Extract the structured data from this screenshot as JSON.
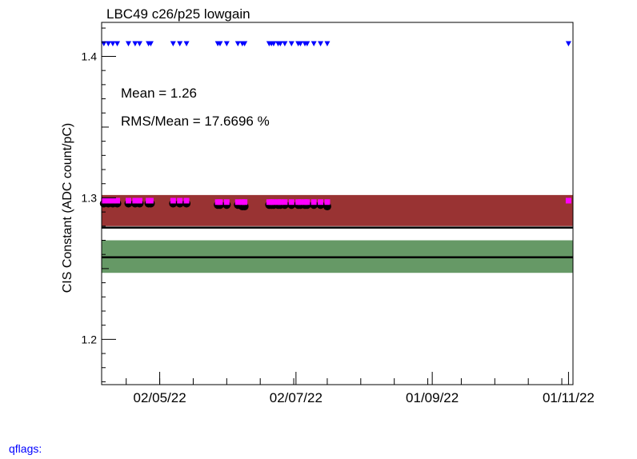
{
  "chart_data": {
    "type": "scatter",
    "title": "LBC49 c26/p25 lowgain",
    "ylabel": "CIS Constant (ADC count/pC)",
    "xlabel": "",
    "ylim": [
      1.168,
      1.424
    ],
    "xlim": [
      "2022-04-06",
      "2022-11-03"
    ],
    "x_tick_labels": [
      "02/05/22",
      "02/07/22",
      "01/09/22",
      "01/11/22"
    ],
    "x_ticks": [
      "2022-05-02",
      "2022-07-02",
      "2022-09-01",
      "2022-11-01"
    ],
    "y_ticks": [
      1.2,
      1.3,
      1.4
    ],
    "stats": {
      "mean_label": "Mean = 1.26",
      "rms_label": "RMS/Mean = 17.6696 %"
    },
    "bands": [
      {
        "name": "red band",
        "range": [
          1.28,
          1.302
        ],
        "color": "#993333"
      },
      {
        "name": "green band",
        "range": [
          1.247,
          1.27
        ],
        "color": "#669966"
      }
    ],
    "lines": [
      {
        "name": "upper line",
        "y": 1.279,
        "color": "#000000"
      },
      {
        "name": "lower line",
        "y": 1.258,
        "color": "#000000"
      }
    ],
    "series": [
      {
        "marker": "circle",
        "color": "#000000",
        "x": [
          "2022-04-07",
          "2022-04-09",
          "2022-04-11",
          "2022-04-13",
          "2022-04-18",
          "2022-04-21",
          "2022-04-23",
          "2022-04-27",
          "2022-04-28",
          "2022-05-08",
          "2022-05-11",
          "2022-05-14",
          "2022-05-28",
          "2022-05-29",
          "2022-06-01",
          "2022-06-06",
          "2022-06-08",
          "2022-06-09",
          "2022-06-20",
          "2022-06-21",
          "2022-06-22",
          "2022-06-24",
          "2022-06-25",
          "2022-06-27",
          "2022-06-30",
          "2022-07-03",
          "2022-07-04",
          "2022-07-06",
          "2022-07-07",
          "2022-07-10",
          "2022-07-13",
          "2022-07-16"
        ],
        "y": [
          1.296,
          1.296,
          1.296,
          1.296,
          1.296,
          1.296,
          1.296,
          1.296,
          1.296,
          1.296,
          1.296,
          1.296,
          1.295,
          1.295,
          1.295,
          1.295,
          1.294,
          1.294,
          1.295,
          1.295,
          1.295,
          1.295,
          1.295,
          1.295,
          1.295,
          1.295,
          1.295,
          1.295,
          1.295,
          1.295,
          1.295,
          1.294
        ]
      },
      {
        "marker": "square",
        "color": "#ff00ff",
        "x": [
          "2022-04-07",
          "2022-04-09",
          "2022-04-11",
          "2022-04-13",
          "2022-04-18",
          "2022-04-21",
          "2022-04-23",
          "2022-04-27",
          "2022-04-28",
          "2022-05-08",
          "2022-05-11",
          "2022-05-14",
          "2022-05-28",
          "2022-05-29",
          "2022-06-01",
          "2022-06-06",
          "2022-06-08",
          "2022-06-09",
          "2022-06-20",
          "2022-06-21",
          "2022-06-22",
          "2022-06-24",
          "2022-06-25",
          "2022-06-27",
          "2022-06-30",
          "2022-07-03",
          "2022-07-04",
          "2022-07-06",
          "2022-07-07",
          "2022-07-10",
          "2022-07-13",
          "2022-07-16",
          "2022-11-01"
        ],
        "y": [
          1.298,
          1.298,
          1.298,
          1.298,
          1.298,
          1.298,
          1.298,
          1.298,
          1.298,
          1.298,
          1.298,
          1.298,
          1.297,
          1.297,
          1.297,
          1.297,
          1.297,
          1.297,
          1.297,
          1.297,
          1.297,
          1.297,
          1.297,
          1.297,
          1.297,
          1.297,
          1.297,
          1.297,
          1.297,
          1.297,
          1.297,
          1.297,
          1.298
        ]
      },
      {
        "marker": "triangle-down",
        "color": "#0000ff",
        "x": [
          "2022-04-07",
          "2022-04-09",
          "2022-04-11",
          "2022-04-13",
          "2022-04-18",
          "2022-04-21",
          "2022-04-23",
          "2022-04-27",
          "2022-04-28",
          "2022-05-08",
          "2022-05-11",
          "2022-05-14",
          "2022-05-28",
          "2022-05-29",
          "2022-06-01",
          "2022-06-06",
          "2022-06-08",
          "2022-06-09",
          "2022-06-20",
          "2022-06-21",
          "2022-06-22",
          "2022-06-24",
          "2022-06-25",
          "2022-06-27",
          "2022-06-30",
          "2022-07-03",
          "2022-07-04",
          "2022-07-06",
          "2022-07-07",
          "2022-07-10",
          "2022-07-13",
          "2022-07-16",
          "2022-11-01"
        ],
        "y": [
          1.409,
          1.409,
          1.409,
          1.409,
          1.409,
          1.409,
          1.409,
          1.409,
          1.409,
          1.409,
          1.409,
          1.409,
          1.409,
          1.409,
          1.409,
          1.409,
          1.409,
          1.409,
          1.409,
          1.409,
          1.409,
          1.409,
          1.409,
          1.409,
          1.409,
          1.409,
          1.409,
          1.409,
          1.409,
          1.409,
          1.409,
          1.409,
          1.409
        ]
      }
    ]
  },
  "footer": {
    "qflags_label": "qflags:"
  }
}
